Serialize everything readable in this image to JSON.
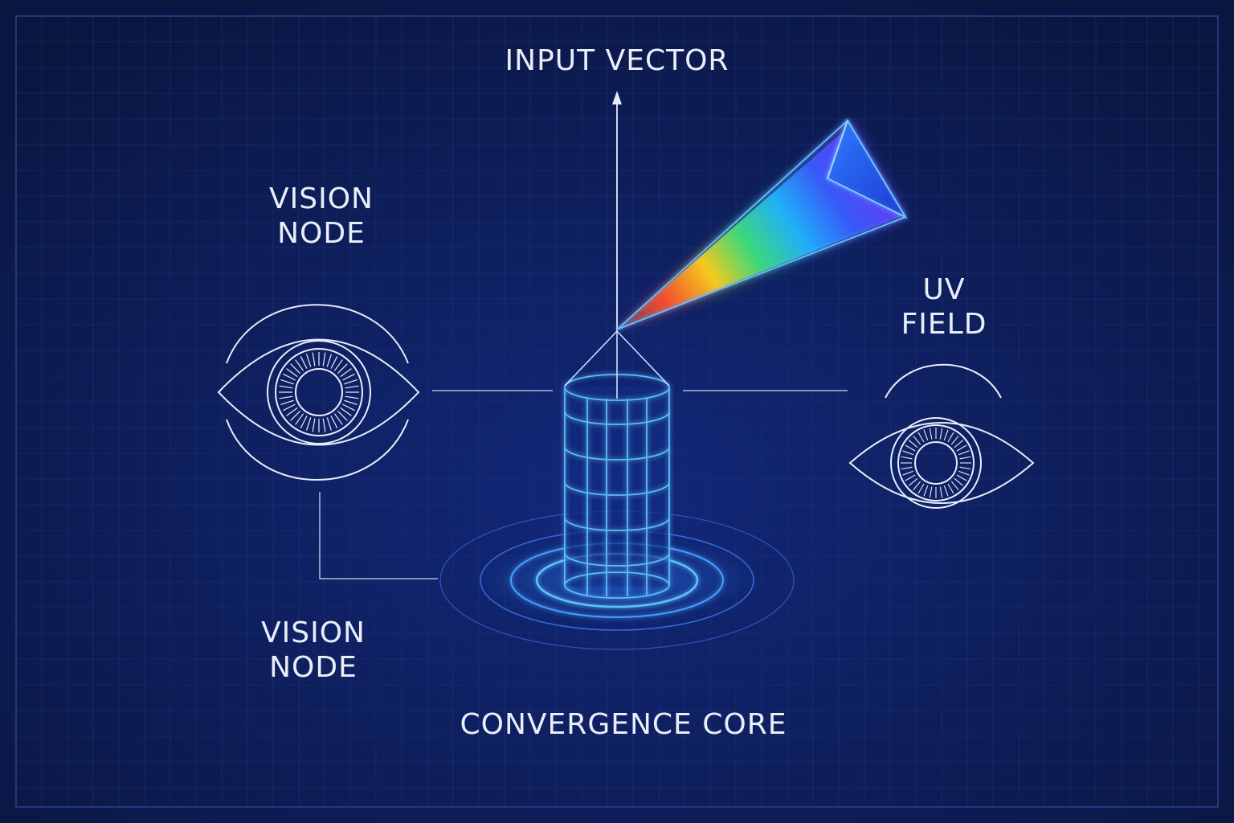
{
  "labels": {
    "input_vector": "INPUT VECTOR",
    "vision_node_top": [
      "VISION",
      "NODE"
    ],
    "uv_field": [
      "UV",
      "FIELD"
    ],
    "vision_node_bottom": [
      "VISION",
      "NODE"
    ],
    "convergence_core": "CONVERGENCE CORE"
  },
  "colors": {
    "background": "#0b1a4a",
    "grid": "#21377a",
    "line": "#dfe6f5",
    "cyan": "#4fb4ff",
    "accent_blue": "#2f6dff",
    "spectrum": [
      "#ff4d2e",
      "#ffd11a",
      "#3fe07a",
      "#1fb6ff",
      "#3a5bff",
      "#6a3cff"
    ]
  },
  "icons": [
    "eye-icon",
    "eye-icon",
    "prism-icon",
    "cylinder-core-icon",
    "arrow-up-icon"
  ]
}
